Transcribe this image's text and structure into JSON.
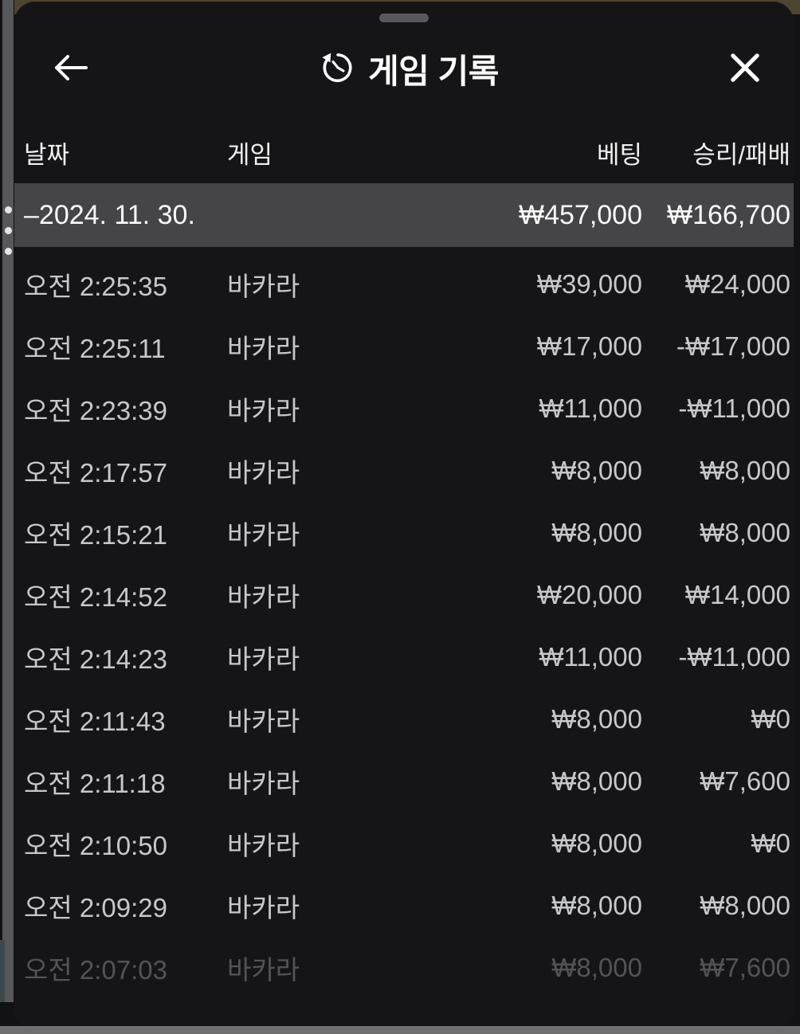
{
  "modal": {
    "title": "게임 기록",
    "back_label": "back",
    "close_label": "close"
  },
  "table": {
    "columns": {
      "date": "날짜",
      "game": "게임",
      "bet": "베팅",
      "winloss": "승리/패배"
    },
    "summary": {
      "date": "–2024. 11. 30.",
      "bet": "₩457,000",
      "winloss": "₩166,700"
    },
    "rows": [
      {
        "time": "오전 2:25:35",
        "game": "바카라",
        "bet": "₩39,000",
        "winloss": "₩24,000"
      },
      {
        "time": "오전 2:25:11",
        "game": "바카라",
        "bet": "₩17,000",
        "winloss": "-₩17,000"
      },
      {
        "time": "오전 2:23:39",
        "game": "바카라",
        "bet": "₩11,000",
        "winloss": "-₩11,000"
      },
      {
        "time": "오전 2:17:57",
        "game": "바카라",
        "bet": "₩8,000",
        "winloss": "₩8,000"
      },
      {
        "time": "오전 2:15:21",
        "game": "바카라",
        "bet": "₩8,000",
        "winloss": "₩8,000"
      },
      {
        "time": "오전 2:14:52",
        "game": "바카라",
        "bet": "₩20,000",
        "winloss": "₩14,000"
      },
      {
        "time": "오전 2:14:23",
        "game": "바카라",
        "bet": "₩11,000",
        "winloss": "-₩11,000"
      },
      {
        "time": "오전 2:11:43",
        "game": "바카라",
        "bet": "₩8,000",
        "winloss": "₩0"
      },
      {
        "time": "오전 2:11:18",
        "game": "바카라",
        "bet": "₩8,000",
        "winloss": "₩7,600"
      },
      {
        "time": "오전 2:10:50",
        "game": "바카라",
        "bet": "₩8,000",
        "winloss": "₩0"
      },
      {
        "time": "오전 2:09:29",
        "game": "바카라",
        "bet": "₩8,000",
        "winloss": "₩8,000"
      },
      {
        "time": "오전 2:07:03",
        "game": "바카라",
        "bet": "₩8,000",
        "winloss": "₩7,600",
        "dimmed": true
      }
    ]
  },
  "colors": {
    "modal_bg": "#151517",
    "summary_row_bg": "#454548",
    "row_text": "#c7c8c9",
    "rail_gray": "#58585a",
    "bottom_bar_gray": "#6f6f71"
  }
}
